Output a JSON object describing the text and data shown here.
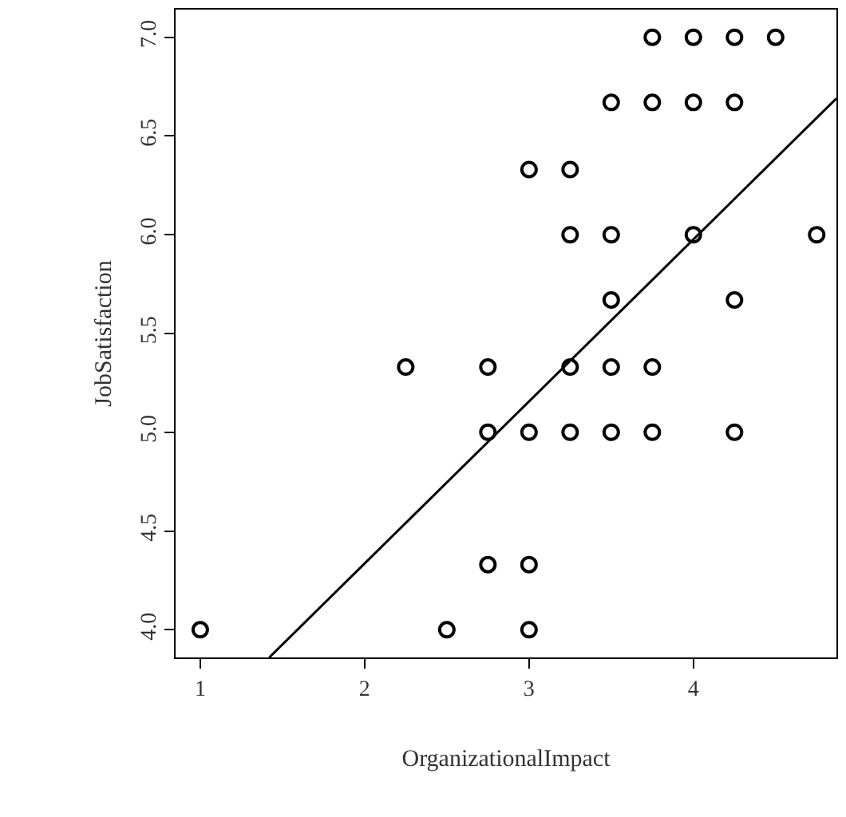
{
  "chart_data": {
    "type": "scatter",
    "xlabel": "OrganizationalImpact",
    "ylabel": "JobSatisfaction",
    "x": [
      1,
      2.5,
      3,
      2.75,
      3,
      2.75,
      3,
      3.25,
      3.5,
      3.75,
      4.25,
      2.25,
      2.75,
      3.25,
      3.5,
      3.75,
      3.5,
      4.25,
      3.25,
      3.5,
      4,
      4.75,
      3,
      3.25,
      3.5,
      3.75,
      4,
      4.25,
      3.75,
      4,
      4.25,
      4.5
    ],
    "series": [
      {
        "color": "#000000",
        "marker": "circle",
        "values": [
          4,
          4,
          4,
          4.33,
          4.33,
          5,
          5,
          5,
          5,
          5,
          5,
          5.33,
          5.33,
          5.33,
          5.33,
          5.33,
          5.67,
          5.67,
          6,
          6,
          6,
          6,
          6.33,
          6.33,
          6.67,
          6.67,
          6.67,
          6.67,
          7,
          7,
          7,
          7
        ]
      },
      {
        "type": "line",
        "color": "#000000",
        "x": [
          1.42,
          4.87
        ],
        "values": [
          3.86,
          6.69
        ]
      }
    ],
    "xlim": [
      0.85,
      4.87
    ],
    "ylim": [
      3.86,
      7.14
    ],
    "xticks": [
      1,
      2,
      3,
      4
    ],
    "yticks": [
      {
        "value": 4,
        "label": "4.0"
      },
      {
        "value": 4.5,
        "label": "4.5"
      },
      {
        "value": 5,
        "label": "5.0"
      },
      {
        "value": 5.5,
        "label": "5.5"
      },
      {
        "value": 6,
        "label": "6.0"
      },
      {
        "value": 6.5,
        "label": "6.5"
      },
      {
        "value": 7,
        "label": "7.0"
      }
    ]
  }
}
